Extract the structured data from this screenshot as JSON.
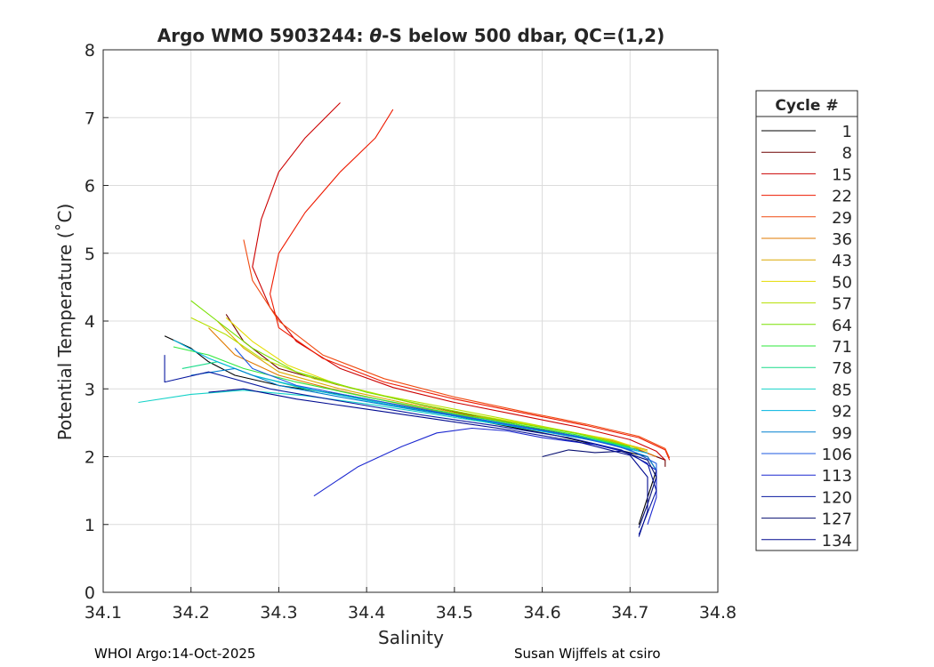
{
  "chart_data": {
    "type": "line",
    "title_prefix": "Argo WMO 5903244: ",
    "title_theta": "θ",
    "title_suffix": "-S below 500 dbar,  QC=(1,2)",
    "xlabel": "Salinity",
    "ylabel": "Potential Temperature (˚C)",
    "xlim": [
      34.1,
      34.8
    ],
    "ylim": [
      0,
      8
    ],
    "xticks": [
      "34.1",
      "34.2",
      "34.3",
      "34.4",
      "34.5",
      "34.6",
      "34.7",
      "34.8"
    ],
    "xtick_values": [
      34.1,
      34.2,
      34.3,
      34.4,
      34.5,
      34.6,
      34.7,
      34.8
    ],
    "yticks": [
      "0",
      "1",
      "2",
      "3",
      "4",
      "5",
      "6",
      "7",
      "8"
    ],
    "ytick_values": [
      0,
      1,
      2,
      3,
      4,
      5,
      6,
      7,
      8
    ],
    "grid": true,
    "legend_title": "Cycle #",
    "legend_position": "right-outside",
    "legend": [
      {
        "label": "1",
        "color": "#000000"
      },
      {
        "label": "8",
        "color": "#6e0000"
      },
      {
        "label": "15",
        "color": "#cc0000"
      },
      {
        "label": "22",
        "color": "#ee1a00"
      },
      {
        "label": "29",
        "color": "#f04a10"
      },
      {
        "label": "36",
        "color": "#e07a00"
      },
      {
        "label": "43",
        "color": "#dca800"
      },
      {
        "label": "50",
        "color": "#e4dc00"
      },
      {
        "label": "57",
        "color": "#b6e000"
      },
      {
        "label": "64",
        "color": "#78e000"
      },
      {
        "label": "71",
        "color": "#2ee83a"
      },
      {
        "label": "78",
        "color": "#1adc8a"
      },
      {
        "label": "85",
        "color": "#14d2c8"
      },
      {
        "label": "92",
        "color": "#00b4e0"
      },
      {
        "label": "99",
        "color": "#0080d0"
      },
      {
        "label": "106",
        "color": "#1e5ae0"
      },
      {
        "label": "113",
        "color": "#1c28d0"
      },
      {
        "label": "120",
        "color": "#0a1aa0"
      },
      {
        "label": "127",
        "color": "#060e70"
      },
      {
        "label": "134",
        "color": "#000a90"
      }
    ],
    "series": [
      {
        "name": "1",
        "color": "#000000",
        "points": [
          [
            34.17,
            3.78
          ],
          [
            34.2,
            3.6
          ],
          [
            34.22,
            3.4
          ],
          [
            34.25,
            3.2
          ],
          [
            34.3,
            3.05
          ],
          [
            34.38,
            2.9
          ],
          [
            34.46,
            2.7
          ],
          [
            34.54,
            2.5
          ],
          [
            34.62,
            2.3
          ],
          [
            34.68,
            2.12
          ],
          [
            34.72,
            2.0
          ],
          [
            34.73,
            1.8
          ],
          [
            34.72,
            1.4
          ],
          [
            34.71,
            1.0
          ]
        ]
      },
      {
        "name": "8",
        "color": "#6e0000",
        "points": [
          [
            34.24,
            4.1
          ],
          [
            34.26,
            3.7
          ],
          [
            34.3,
            3.3
          ],
          [
            34.37,
            3.05
          ],
          [
            34.45,
            2.8
          ],
          [
            34.53,
            2.58
          ],
          [
            34.6,
            2.4
          ],
          [
            34.66,
            2.25
          ],
          [
            34.71,
            2.1
          ],
          [
            34.74,
            1.95
          ],
          [
            34.74,
            1.85
          ]
        ]
      },
      {
        "name": "15",
        "color": "#cc0000",
        "points": [
          [
            34.37,
            7.22
          ],
          [
            34.33,
            6.7
          ],
          [
            34.3,
            6.2
          ],
          [
            34.28,
            5.5
          ],
          [
            34.27,
            4.8
          ],
          [
            34.29,
            4.2
          ],
          [
            34.32,
            3.7
          ],
          [
            34.37,
            3.3
          ],
          [
            34.43,
            3.02
          ],
          [
            34.5,
            2.8
          ],
          [
            34.57,
            2.62
          ],
          [
            34.64,
            2.44
          ],
          [
            34.7,
            2.25
          ],
          [
            34.73,
            2.08
          ],
          [
            34.74,
            1.95
          ]
        ]
      },
      {
        "name": "22",
        "color": "#ee1a00",
        "points": [
          [
            34.43,
            7.12
          ],
          [
            34.41,
            6.7
          ],
          [
            34.37,
            6.2
          ],
          [
            34.33,
            5.6
          ],
          [
            34.3,
            5.0
          ],
          [
            34.29,
            4.4
          ],
          [
            34.3,
            3.9
          ],
          [
            34.35,
            3.45
          ],
          [
            34.42,
            3.1
          ],
          [
            34.5,
            2.85
          ],
          [
            34.58,
            2.64
          ],
          [
            34.65,
            2.46
          ],
          [
            34.71,
            2.28
          ],
          [
            34.74,
            2.1
          ],
          [
            34.745,
            1.95
          ]
        ]
      },
      {
        "name": "29",
        "color": "#f04a10",
        "points": [
          [
            34.26,
            5.2
          ],
          [
            34.27,
            4.6
          ],
          [
            34.3,
            4.0
          ],
          [
            34.35,
            3.5
          ],
          [
            34.42,
            3.15
          ],
          [
            34.5,
            2.88
          ],
          [
            34.58,
            2.66
          ],
          [
            34.65,
            2.48
          ],
          [
            34.71,
            2.3
          ],
          [
            34.74,
            2.12
          ],
          [
            34.745,
            1.98
          ]
        ]
      },
      {
        "name": "36",
        "color": "#e07a00",
        "points": [
          [
            34.22,
            3.9
          ],
          [
            34.25,
            3.5
          ],
          [
            34.3,
            3.2
          ],
          [
            34.36,
            3.0
          ],
          [
            34.43,
            2.8
          ],
          [
            34.5,
            2.62
          ],
          [
            34.58,
            2.48
          ],
          [
            34.65,
            2.32
          ],
          [
            34.7,
            2.16
          ],
          [
            34.73,
            2.0
          ]
        ]
      },
      {
        "name": "43",
        "color": "#dca800",
        "points": [
          [
            34.23,
            4.0
          ],
          [
            34.26,
            3.6
          ],
          [
            34.3,
            3.25
          ],
          [
            34.37,
            3.0
          ],
          [
            34.44,
            2.8
          ],
          [
            34.52,
            2.6
          ],
          [
            34.6,
            2.44
          ],
          [
            34.67,
            2.27
          ],
          [
            34.72,
            2.1
          ]
        ]
      },
      {
        "name": "50",
        "color": "#e4dc00",
        "points": [
          [
            34.24,
            4.05
          ],
          [
            34.27,
            3.7
          ],
          [
            34.31,
            3.35
          ],
          [
            34.37,
            3.05
          ],
          [
            34.45,
            2.8
          ],
          [
            34.53,
            2.6
          ],
          [
            34.61,
            2.42
          ],
          [
            34.68,
            2.25
          ],
          [
            34.72,
            2.08
          ]
        ]
      },
      {
        "name": "57",
        "color": "#b6e000",
        "points": [
          [
            34.2,
            4.05
          ],
          [
            34.24,
            3.8
          ],
          [
            34.28,
            3.45
          ],
          [
            34.34,
            3.15
          ],
          [
            34.42,
            2.9
          ],
          [
            34.5,
            2.7
          ],
          [
            34.58,
            2.5
          ],
          [
            34.65,
            2.32
          ],
          [
            34.71,
            2.12
          ]
        ]
      },
      {
        "name": "64",
        "color": "#78e000",
        "points": [
          [
            34.2,
            4.3
          ],
          [
            34.23,
            4.0
          ],
          [
            34.27,
            3.6
          ],
          [
            34.32,
            3.25
          ],
          [
            34.4,
            2.95
          ],
          [
            34.48,
            2.72
          ],
          [
            34.56,
            2.52
          ],
          [
            34.64,
            2.34
          ],
          [
            34.7,
            2.15
          ]
        ]
      },
      {
        "name": "71",
        "color": "#2ee83a",
        "points": [
          [
            34.18,
            3.62
          ],
          [
            34.22,
            3.5
          ],
          [
            34.26,
            3.3
          ],
          [
            34.32,
            3.1
          ],
          [
            34.4,
            2.88
          ],
          [
            34.48,
            2.68
          ],
          [
            34.56,
            2.5
          ],
          [
            34.64,
            2.32
          ],
          [
            34.7,
            2.14
          ]
        ]
      },
      {
        "name": "78",
        "color": "#1adc8a",
        "points": [
          [
            34.19,
            3.3
          ],
          [
            34.23,
            3.4
          ],
          [
            34.27,
            3.2
          ],
          [
            34.33,
            3.0
          ],
          [
            34.41,
            2.82
          ],
          [
            34.49,
            2.64
          ],
          [
            34.57,
            2.46
          ],
          [
            34.65,
            2.28
          ],
          [
            34.71,
            2.1
          ]
        ]
      },
      {
        "name": "85",
        "color": "#14d2c8",
        "points": [
          [
            34.14,
            2.8
          ],
          [
            34.2,
            2.92
          ],
          [
            34.26,
            2.98
          ],
          [
            34.33,
            2.9
          ],
          [
            34.41,
            2.76
          ],
          [
            34.49,
            2.6
          ],
          [
            34.57,
            2.44
          ],
          [
            34.65,
            2.26
          ],
          [
            34.71,
            2.08
          ]
        ]
      },
      {
        "name": "92",
        "color": "#00b4e0",
        "points": [
          [
            34.18,
            3.72
          ],
          [
            34.22,
            3.45
          ],
          [
            34.27,
            3.2
          ],
          [
            34.34,
            2.98
          ],
          [
            34.42,
            2.78
          ],
          [
            34.5,
            2.6
          ],
          [
            34.58,
            2.42
          ],
          [
            34.66,
            2.24
          ],
          [
            34.72,
            2.05
          ]
        ]
      },
      {
        "name": "99",
        "color": "#0080d0",
        "points": [
          [
            34.2,
            3.2
          ],
          [
            34.25,
            3.3
          ],
          [
            34.3,
            3.05
          ],
          [
            34.37,
            2.88
          ],
          [
            34.45,
            2.7
          ],
          [
            34.53,
            2.54
          ],
          [
            34.61,
            2.36
          ],
          [
            34.68,
            2.18
          ],
          [
            34.72,
            2.0
          ],
          [
            34.73,
            1.8
          ]
        ]
      },
      {
        "name": "106",
        "color": "#1e5ae0",
        "points": [
          [
            34.25,
            3.6
          ],
          [
            34.27,
            3.3
          ],
          [
            34.32,
            3.05
          ],
          [
            34.4,
            2.85
          ],
          [
            34.48,
            2.66
          ],
          [
            34.56,
            2.48
          ],
          [
            34.64,
            2.3
          ],
          [
            34.7,
            2.1
          ],
          [
            34.73,
            1.9
          ],
          [
            34.73,
            1.6
          ]
        ]
      },
      {
        "name": "113",
        "color": "#1c28d0",
        "points": [
          [
            34.34,
            1.42
          ],
          [
            34.39,
            1.85
          ],
          [
            34.44,
            2.15
          ],
          [
            34.48,
            2.35
          ],
          [
            34.52,
            2.42
          ],
          [
            34.56,
            2.38
          ],
          [
            34.6,
            2.28
          ],
          [
            34.66,
            2.18
          ],
          [
            34.7,
            2.05
          ],
          [
            34.73,
            1.8
          ],
          [
            34.73,
            1.4
          ],
          [
            34.72,
            1.0
          ]
        ]
      },
      {
        "name": "120",
        "color": "#0a1aa0",
        "points": [
          [
            34.17,
            3.5
          ],
          [
            34.17,
            3.1
          ],
          [
            34.22,
            3.25
          ],
          [
            34.29,
            3.0
          ],
          [
            34.37,
            2.82
          ],
          [
            34.46,
            2.62
          ],
          [
            34.55,
            2.45
          ],
          [
            34.63,
            2.28
          ],
          [
            34.69,
            2.1
          ],
          [
            34.72,
            1.9
          ],
          [
            34.73,
            1.5
          ],
          [
            34.71,
            0.85
          ]
        ]
      },
      {
        "name": "127",
        "color": "#060e70",
        "points": [
          [
            34.6,
            2.0
          ],
          [
            34.63,
            2.1
          ],
          [
            34.66,
            2.06
          ],
          [
            34.69,
            2.08
          ],
          [
            34.72,
            1.95
          ],
          [
            34.73,
            1.7
          ],
          [
            34.72,
            1.3
          ],
          [
            34.71,
            0.95
          ]
        ]
      },
      {
        "name": "134",
        "color": "#000a90",
        "points": [
          [
            34.22,
            2.95
          ],
          [
            34.26,
            3.0
          ],
          [
            34.32,
            2.85
          ],
          [
            34.4,
            2.7
          ],
          [
            34.48,
            2.55
          ],
          [
            34.56,
            2.4
          ],
          [
            34.64,
            2.22
          ],
          [
            34.7,
            2.02
          ],
          [
            34.72,
            1.7
          ],
          [
            34.72,
            1.2
          ],
          [
            34.71,
            0.82
          ]
        ]
      }
    ]
  },
  "footer": {
    "left": "WHOI Argo:14-Oct-2025",
    "right": "Susan Wijffels at csiro"
  }
}
